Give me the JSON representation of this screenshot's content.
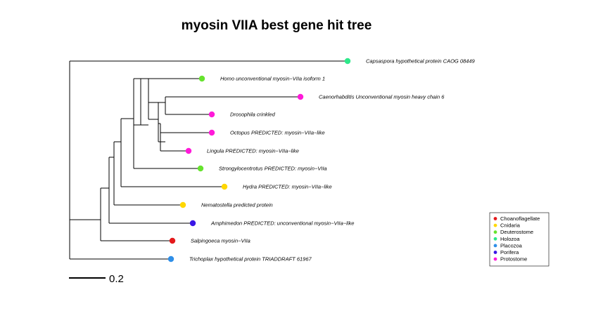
{
  "title": "myosin VIIA best gene hit tree",
  "scale_label": "0.2",
  "colors": {
    "Choanoflagellate": "#e41a1c",
    "Cnidaria": "#ffd700",
    "Deuterostome": "#66e32e",
    "Holozoa": "#2ee88a",
    "Placozoa": "#2f8fe8",
    "Porifera": "#3a16e6",
    "Protostome": "#ff1ad9"
  },
  "legend": [
    "Choanoflagellate",
    "Cnidaria",
    "Deuterostome",
    "Holozoa",
    "Placozoa",
    "Porifera",
    "Protostome"
  ],
  "leaves": [
    {
      "id": "capsaspora",
      "label": "Capsaspora  hypothetical protein CAOG 08449",
      "group": "Holozoa"
    },
    {
      "id": "homo",
      "label": "Homo  unconventional myosin−VIIa isoform 1",
      "group": "Deuterostome"
    },
    {
      "id": "caenorhabditis",
      "label": "Caenorhabditis  Unconventional myosin heavy chain 6",
      "group": "Protostome"
    },
    {
      "id": "drosophila",
      "label": "Drosophila  crinkled",
      "group": "Protostome"
    },
    {
      "id": "octopus",
      "label": "Octopus  PREDICTED: myosin−VIIa−like",
      "group": "Protostome"
    },
    {
      "id": "lingula",
      "label": "Lingula  PREDICTED: myosin−VIIa−like",
      "group": "Protostome"
    },
    {
      "id": "strongylocentrotus",
      "label": "Strongylocentrotus  PREDICTED: myosin−VIIa",
      "group": "Deuterostome"
    },
    {
      "id": "hydra",
      "label": "Hydra  PREDICTED: myosin−VIIa−like",
      "group": "Cnidaria"
    },
    {
      "id": "nematostella",
      "label": "Nematostella  predicted protein",
      "group": "Cnidaria"
    },
    {
      "id": "amphimedon",
      "label": "Amphimedon  PREDICTED: unconventional myosin−VIIa−like",
      "group": "Porifera"
    },
    {
      "id": "salpingoeca",
      "label": "Salpingoeca  myosin−VIIa",
      "group": "Choanoflagellate"
    },
    {
      "id": "trichoplax",
      "label": "Trichoplax  hypothetical protein TRIADDRAFT 61967",
      "group": "Placozoa"
    }
  ]
}
